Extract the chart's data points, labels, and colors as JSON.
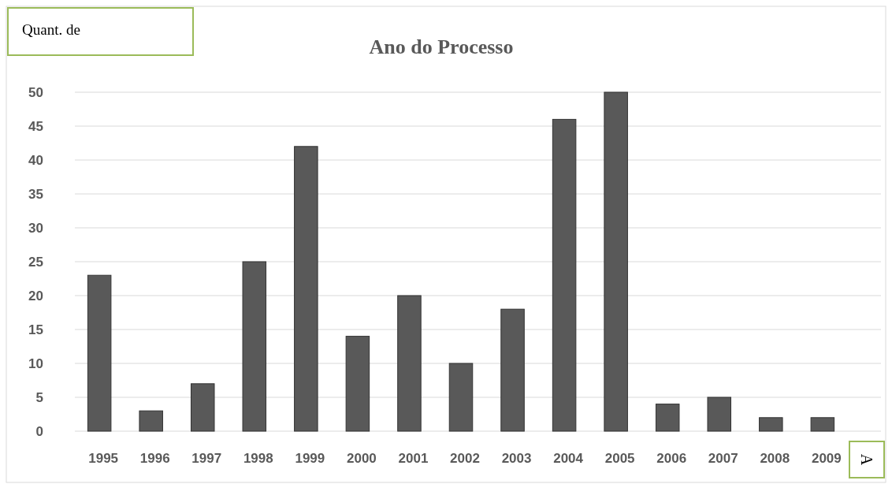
{
  "chart_data": {
    "type": "bar",
    "title": "Ano do Processo",
    "ylabel": "Quant. de",
    "categories": [
      "1995",
      "1996",
      "1997",
      "1998",
      "1999",
      "2000",
      "2001",
      "2002",
      "2003",
      "2004",
      "2005",
      "2006",
      "2007",
      "2008",
      "2009"
    ],
    "values": [
      23,
      3,
      7,
      25,
      42,
      14,
      20,
      10,
      18,
      46,
      50,
      4,
      5,
      2,
      2
    ],
    "color": "#595959",
    "ylim": [
      0,
      50
    ],
    "yticks": [
      0,
      5,
      10,
      15,
      20,
      25,
      30,
      35,
      40,
      45,
      50
    ],
    "grid": "y",
    "annotations": [
      "A"
    ]
  }
}
